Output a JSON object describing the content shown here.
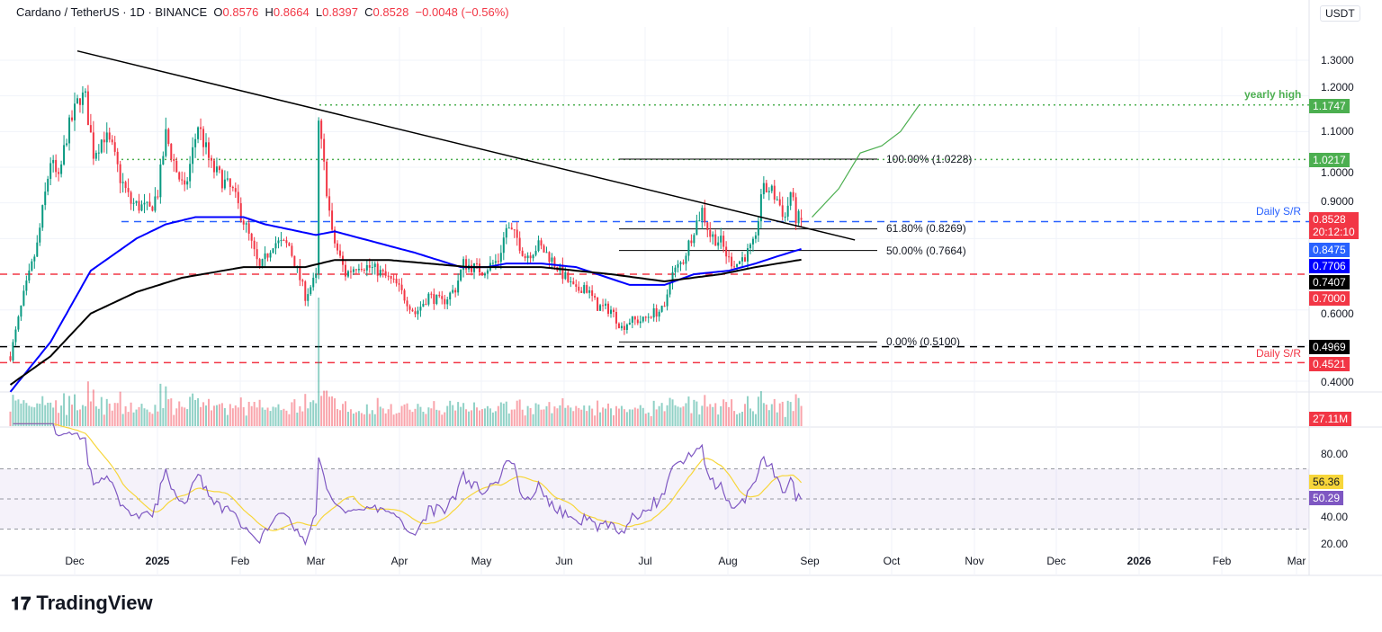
{
  "header": {
    "symbol": "Cardano / TetherUS · 1D · BINANCE",
    "o_label": "O",
    "open": "0.8576",
    "h_label": "H",
    "high": "0.8664",
    "l_label": "L",
    "low": "0.8397",
    "c_label": "C",
    "close": "0.8528",
    "change": "−0.0048 (−0.56%)"
  },
  "currency": "USDT",
  "logo": "TradingView",
  "colors": {
    "up": "#089981",
    "down": "#f23645",
    "ma_fast": "#0000ff",
    "ma_slow": "#000000",
    "rsi": "#7e57c2",
    "rsi_ma": "#f7d63a",
    "green": "#4caf50",
    "sr_blue": "#2962ff"
  },
  "price_axis": {
    "ticks": [
      "1.3000",
      "1.2000",
      "1.1000",
      "1.0000",
      "0.9000",
      "0.6000",
      "0.4000"
    ]
  },
  "price_labels": [
    {
      "text": "1.1747",
      "color": "#4caf50"
    },
    {
      "text": "1.0217",
      "color": "#4caf50"
    },
    {
      "text": "0.8528",
      "sub": "20:12:10",
      "color": "#f23645"
    },
    {
      "text": "0.8475",
      "color": "#2962ff"
    },
    {
      "text": "0.7706",
      "color": "#0000ff"
    },
    {
      "text": "0.7407",
      "color": "#000000"
    },
    {
      "text": "0.7000",
      "color": "#f23645"
    },
    {
      "text": "0.4969",
      "color": "#000000"
    },
    {
      "text": "0.4521",
      "color": "#f23645"
    }
  ],
  "annotations": {
    "yearly_high": "yearly high",
    "daily_sr_top": "Daily S/R",
    "daily_sr_bottom": "Daily S/R",
    "fib100": "100.00% (1.0228)",
    "fib618": "61.80% (0.8269)",
    "fib50": "50.00% (0.7664)",
    "fib0": "0.00% (0.5100)"
  },
  "volume": {
    "last": "27.11M"
  },
  "rsi_axis": {
    "ticks": [
      "80.00",
      "40.00",
      "20.00"
    ],
    "rsi": "50.29",
    "rsi_ma": "56.36"
  },
  "x_axis": [
    "Dec",
    "2025",
    "Feb",
    "Mar",
    "Apr",
    "May",
    "Jun",
    "Jul",
    "Aug",
    "Sep",
    "Oct",
    "Nov",
    "Dec",
    "2026",
    "Feb",
    "Mar"
  ],
  "chart_data": {
    "type": "candlestick",
    "timeframe": "1D",
    "ylim": [
      0.37,
      1.33
    ],
    "close_approx": [
      [
        "2024-11-07",
        0.47
      ],
      [
        "2024-11-12",
        0.64
      ],
      [
        "2024-11-17",
        0.78
      ],
      [
        "2024-11-22",
        1.02
      ],
      [
        "2024-11-25",
        0.96
      ],
      [
        "2024-11-28",
        1.09
      ],
      [
        "2024-12-03",
        1.2
      ],
      [
        "2024-12-05",
        1.19
      ],
      [
        "2024-12-08",
        1.04
      ],
      [
        "2024-12-12",
        1.09
      ],
      [
        "2024-12-15",
        1.05
      ],
      [
        "2024-12-18",
        0.97
      ],
      [
        "2024-12-22",
        0.9
      ],
      [
        "2024-12-29",
        0.88
      ],
      [
        "2025-01-01",
        0.93
      ],
      [
        "2025-01-04",
        1.09
      ],
      [
        "2025-01-08",
        0.99
      ],
      [
        "2025-01-11",
        0.93
      ],
      [
        "2025-01-16",
        1.12
      ],
      [
        "2025-01-21",
        1.0
      ],
      [
        "2025-01-29",
        0.93
      ],
      [
        "2025-02-03",
        0.83
      ],
      [
        "2025-02-08",
        0.71
      ],
      [
        "2025-02-13",
        0.79
      ],
      [
        "2025-02-19",
        0.78
      ],
      [
        "2025-02-25",
        0.64
      ],
      [
        "2025-03-01",
        0.69
      ],
      [
        "2025-03-02",
        1.12
      ],
      [
        "2025-03-05",
        0.94
      ],
      [
        "2025-03-07",
        0.81
      ],
      [
        "2025-03-12",
        0.7
      ],
      [
        "2025-03-17",
        0.73
      ],
      [
        "2025-03-24",
        0.71
      ],
      [
        "2025-03-31",
        0.67
      ],
      [
        "2025-04-07",
        0.59
      ],
      [
        "2025-04-12",
        0.64
      ],
      [
        "2025-04-17",
        0.62
      ],
      [
        "2025-04-22",
        0.66
      ],
      [
        "2025-04-25",
        0.73
      ],
      [
        "2025-05-02",
        0.71
      ],
      [
        "2025-05-08",
        0.74
      ],
      [
        "2025-05-11",
        0.83
      ],
      [
        "2025-05-15",
        0.8
      ],
      [
        "2025-05-18",
        0.75
      ],
      [
        "2025-05-23",
        0.78
      ],
      [
        "2025-05-27",
        0.75
      ],
      [
        "2025-06-01",
        0.7
      ],
      [
        "2025-06-06",
        0.65
      ],
      [
        "2025-06-09",
        0.67
      ],
      [
        "2025-06-14",
        0.61
      ],
      [
        "2025-06-19",
        0.6
      ],
      [
        "2025-06-23",
        0.55
      ],
      [
        "2025-06-26",
        0.57
      ],
      [
        "2025-07-01",
        0.57
      ],
      [
        "2025-07-04",
        0.59
      ],
      [
        "2025-07-09",
        0.6
      ],
      [
        "2025-07-11",
        0.69
      ],
      [
        "2025-07-16",
        0.74
      ],
      [
        "2025-07-20",
        0.83
      ],
      [
        "2025-07-23",
        0.88
      ],
      [
        "2025-07-26",
        0.81
      ],
      [
        "2025-07-30",
        0.79
      ],
      [
        "2025-08-02",
        0.74
      ],
      [
        "2025-08-05",
        0.73
      ],
      [
        "2025-08-09",
        0.76
      ],
      [
        "2025-08-12",
        0.79
      ],
      [
        "2025-08-14",
        0.93
      ],
      [
        "2025-08-17",
        0.94
      ],
      [
        "2025-08-20",
        0.91
      ],
      [
        "2025-08-23",
        0.86
      ],
      [
        "2025-08-25",
        0.93
      ],
      [
        "2025-08-27",
        0.86
      ],
      [
        "2025-08-29",
        0.8528
      ]
    ],
    "ma_fast_approx": [
      [
        "2024-11-07",
        0.37
      ],
      [
        "2024-11-22",
        0.51
      ],
      [
        "2024-12-07",
        0.71
      ],
      [
        "2024-12-24",
        0.8
      ],
      [
        "2025-01-04",
        0.84
      ],
      [
        "2025-01-15",
        0.86
      ],
      [
        "2025-02-02",
        0.86
      ],
      [
        "2025-02-10",
        0.84
      ],
      [
        "2025-03-01",
        0.81
      ],
      [
        "2025-03-08",
        0.82
      ],
      [
        "2025-03-28",
        0.78
      ],
      [
        "2025-04-07",
        0.76
      ],
      [
        "2025-04-24",
        0.72
      ],
      [
        "2025-05-04",
        0.72
      ],
      [
        "2025-05-11",
        0.73
      ],
      [
        "2025-05-24",
        0.73
      ],
      [
        "2025-06-06",
        0.72
      ],
      [
        "2025-06-26",
        0.67
      ],
      [
        "2025-07-09",
        0.67
      ],
      [
        "2025-07-20",
        0.7
      ],
      [
        "2025-08-02",
        0.71
      ],
      [
        "2025-08-12",
        0.73
      ],
      [
        "2025-08-20",
        0.75
      ],
      [
        "2025-08-29",
        0.7706
      ]
    ],
    "ma_slow_approx": [
      [
        "2024-11-07",
        0.39
      ],
      [
        "2024-11-22",
        0.47
      ],
      [
        "2024-12-07",
        0.59
      ],
      [
        "2024-12-24",
        0.65
      ],
      [
        "2025-01-10",
        0.69
      ],
      [
        "2025-02-02",
        0.72
      ],
      [
        "2025-02-25",
        0.72
      ],
      [
        "2025-03-08",
        0.74
      ],
      [
        "2025-03-28",
        0.74
      ],
      [
        "2025-04-27",
        0.72
      ],
      [
        "2025-05-24",
        0.72
      ],
      [
        "2025-06-19",
        0.7
      ],
      [
        "2025-07-09",
        0.68
      ],
      [
        "2025-07-30",
        0.7
      ],
      [
        "2025-08-12",
        0.72
      ],
      [
        "2025-08-29",
        0.7407
      ]
    ],
    "trendline": [
      [
        "2024-12-02",
        1.326
      ],
      [
        "2025-09-18",
        0.796
      ]
    ],
    "projection": [
      [
        "2025-09-02",
        0.86
      ],
      [
        "2025-09-12",
        0.94
      ],
      [
        "2025-09-20",
        1.04
      ],
      [
        "2025-09-28",
        1.06
      ],
      [
        "2025-10-05",
        1.1
      ],
      [
        "2025-10-12",
        1.1747
      ]
    ],
    "levels": {
      "yearly_high": 1.1747,
      "resistance": 1.0217,
      "daily_sr": 0.8475,
      "support_red": 0.7,
      "support_black": 0.4969,
      "daily_sr_low": 0.4521
    },
    "fibonacci": {
      "0": 0.51,
      "0.5": 0.7664,
      "0.618": 0.8269,
      "1": 1.0228
    },
    "rsi_bands": [
      30,
      50,
      70
    ],
    "rsi_ylim": [
      15,
      95
    ],
    "x_range": [
      "2024-11-05",
      "2026-03-10"
    ]
  }
}
